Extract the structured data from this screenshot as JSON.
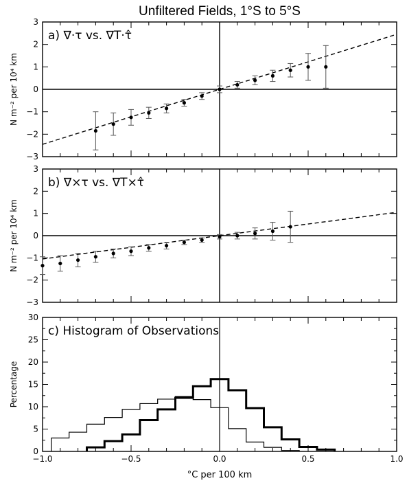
{
  "figure": {
    "title": "Unfiltered Fields, 1°S to 5°S",
    "xlabel": "°C per 100 km"
  },
  "chart_data": [
    {
      "type": "scatter",
      "panel": "a",
      "title": "a) ∇·τ vs. ∇T·τ̂",
      "ylabel": "N m⁻² per 10⁴ km",
      "xlim": [
        -1.0,
        1.0
      ],
      "ylim": [
        -3,
        3
      ],
      "yticks": [
        -3,
        -2,
        -1,
        0,
        1,
        2,
        3
      ],
      "xticks": [
        -1.0,
        -0.5,
        0.0,
        0.5,
        1.0
      ],
      "show_xtick_labels": false,
      "x": [
        -0.7,
        -0.6,
        -0.5,
        -0.4,
        -0.3,
        -0.2,
        -0.1,
        0.0,
        0.1,
        0.2,
        0.3,
        0.4,
        0.5,
        0.6
      ],
      "y": [
        -1.85,
        -1.55,
        -1.25,
        -1.05,
        -0.85,
        -0.6,
        -0.3,
        0.0,
        0.2,
        0.4,
        0.6,
        0.85,
        1.0,
        1.0
      ],
      "err": [
        0.85,
        0.5,
        0.35,
        0.25,
        0.2,
        0.15,
        0.15,
        0.15,
        0.15,
        0.2,
        0.25,
        0.3,
        0.6,
        0.95
      ],
      "fit_line": {
        "slope": 2.45,
        "intercept": 0.0,
        "style": "dashed"
      },
      "reference_lines": {
        "x": 0,
        "y": 0
      }
    },
    {
      "type": "scatter",
      "panel": "b",
      "title": "b) ∇×τ vs. ∇T×τ̂",
      "ylabel": "N m⁻² per 10⁴ km",
      "xlim": [
        -1.0,
        1.0
      ],
      "ylim": [
        -3,
        3
      ],
      "yticks": [
        -3,
        -2,
        -1,
        0,
        1,
        2,
        3
      ],
      "xticks": [
        -1.0,
        -0.5,
        0.0,
        0.5,
        1.0
      ],
      "show_xtick_labels": false,
      "x": [
        -1.0,
        -0.9,
        -0.8,
        -0.7,
        -0.6,
        -0.5,
        -0.4,
        -0.3,
        -0.2,
        -0.1,
        0.0,
        0.1,
        0.2,
        0.3,
        0.4
      ],
      "y": [
        -1.35,
        -1.25,
        -1.1,
        -0.95,
        -0.8,
        -0.7,
        -0.55,
        -0.45,
        -0.3,
        -0.2,
        -0.05,
        0.0,
        0.1,
        0.2,
        0.4
      ],
      "err": [
        0.4,
        0.35,
        0.3,
        0.25,
        0.2,
        0.2,
        0.15,
        0.15,
        0.1,
        0.1,
        0.1,
        0.15,
        0.25,
        0.4,
        0.7
      ],
      "fit_line": {
        "slope": 1.05,
        "intercept": 0.0,
        "style": "dashed"
      },
      "reference_lines": {
        "x": 0,
        "y": 0
      }
    },
    {
      "type": "histogram",
      "panel": "c",
      "title": "c) Histogram of Observations",
      "ylabel": "Percentage",
      "xlabel": "°C per 100 km",
      "xlim": [
        -1.0,
        1.0
      ],
      "ylim": [
        0,
        30
      ],
      "yticks": [
        0,
        5,
        10,
        15,
        20,
        25,
        30
      ],
      "xticks": [
        -1.0,
        -0.5,
        0.0,
        0.5,
        1.0
      ],
      "xtick_labels": [
        "−1.0",
        "−0.5",
        "0.0",
        "0.5",
        "1.0"
      ],
      "bin_width": 0.1,
      "series": [
        {
          "style": "thin",
          "bin_left_edges": [
            -0.95,
            -0.85,
            -0.75,
            -0.65,
            -0.55,
            -0.45,
            -0.35,
            -0.25,
            -0.15,
            -0.05,
            0.05,
            0.15,
            0.25,
            0.35
          ],
          "values": [
            3,
            4.3,
            6.1,
            7.6,
            9.4,
            10.7,
            11.7,
            12.3,
            11.6,
            9.8,
            5.1,
            2.1,
            0.9,
            0.2
          ]
        },
        {
          "style": "thick",
          "bin_left_edges": [
            -0.75,
            -0.65,
            -0.55,
            -0.45,
            -0.35,
            -0.25,
            -0.15,
            -0.05,
            0.05,
            0.15,
            0.25,
            0.35,
            0.45,
            0.55
          ],
          "values": [
            0.9,
            2.3,
            3.8,
            7.0,
            9.4,
            12.0,
            14.6,
            16.2,
            13.7,
            9.7,
            5.4,
            2.7,
            1.0,
            0.4
          ]
        }
      ]
    }
  ]
}
